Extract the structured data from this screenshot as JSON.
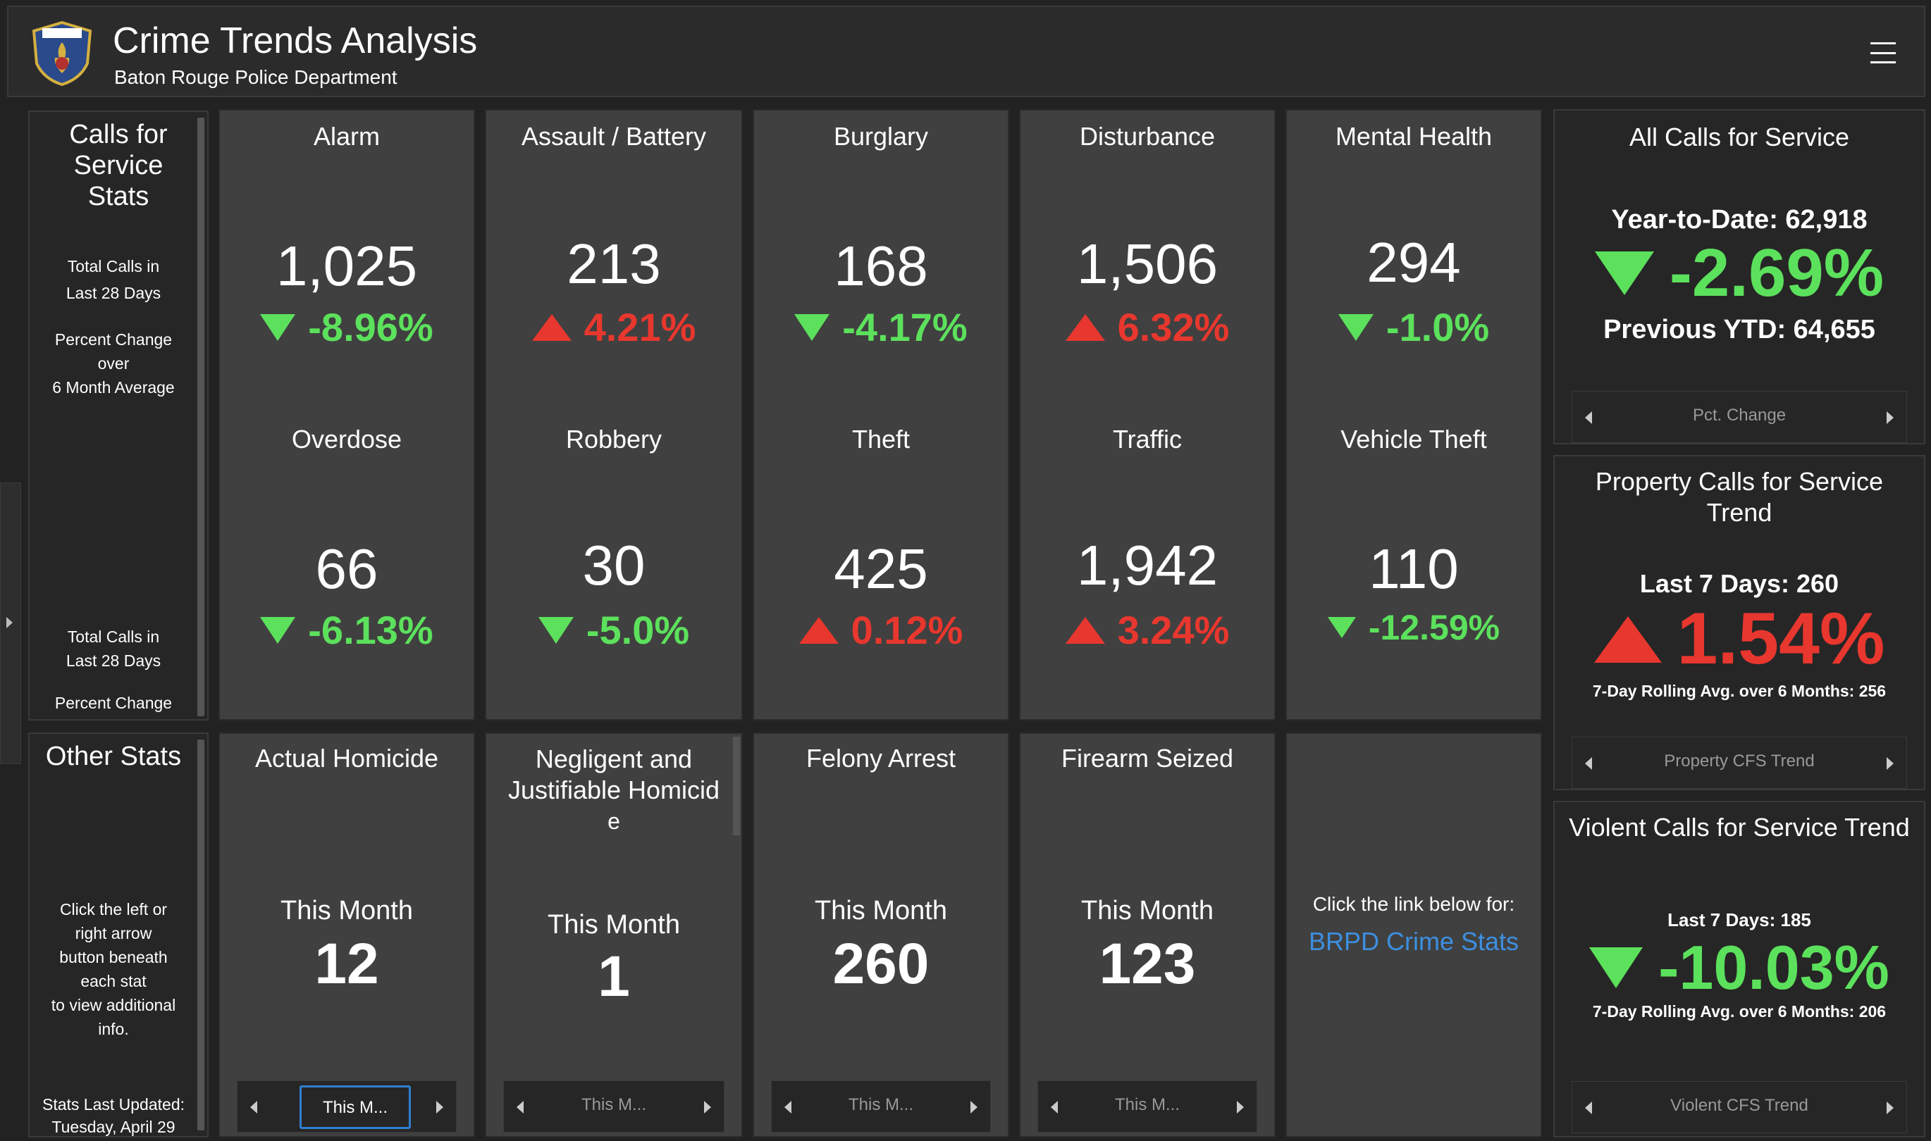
{
  "header": {
    "title": "Crime Trends Analysis",
    "subtitle": "Baton Rouge Police Department",
    "logo_text": "POLICE"
  },
  "calls_sidebar": {
    "title": "Calls for Service Stats",
    "note1_line1": "Total Calls in",
    "note1_line2": "Last 28 Days",
    "note2_line1": "Percent Change",
    "note2_line2": "over",
    "note2_line3": "6 Month Average",
    "note3_line1": "Total Calls in",
    "note3_line2": "Last 28 Days",
    "note4_line1": "Percent Change"
  },
  "other_sidebar": {
    "title": "Other Stats",
    "instr_line1": "Click the left or",
    "instr_line2": "right arrow",
    "instr_line3": "button beneath",
    "instr_line4": "each stat",
    "instr_line5": "to view additional",
    "instr_line6": "info.",
    "updated_line1": "Stats Last Updated:",
    "updated_line2": "Tuesday, April 29"
  },
  "stats_row1": [
    {
      "title": "Alarm",
      "value": "1,025",
      "change": "-8.96%",
      "direction": "down"
    },
    {
      "title": "Assault / Battery",
      "value": "213",
      "change": "4.21%",
      "direction": "up"
    },
    {
      "title": "Burglary",
      "value": "168",
      "change": "-4.17%",
      "direction": "down"
    },
    {
      "title": "Disturbance",
      "value": "1,506",
      "change": "6.32%",
      "direction": "up"
    },
    {
      "title": "Mental Health",
      "value": "294",
      "change": "-1.0%",
      "direction": "down"
    }
  ],
  "stats_row2": [
    {
      "title": "Overdose",
      "value": "66",
      "change": "-6.13%",
      "direction": "down"
    },
    {
      "title": "Robbery",
      "value": "30",
      "change": "-5.0%",
      "direction": "down"
    },
    {
      "title": "Theft",
      "value": "425",
      "change": "0.12%",
      "direction": "up"
    },
    {
      "title": "Traffic",
      "value": "1,942",
      "change": "3.24%",
      "direction": "up"
    },
    {
      "title": "Vehicle Theft",
      "value": "110",
      "change": "-12.59%",
      "direction": "down"
    }
  ],
  "other_stats": [
    {
      "title_line1": "Actual Homicide",
      "title_line2": "",
      "title_line3": "",
      "label": "This Month",
      "value": "12",
      "nav": "This M..."
    },
    {
      "title_line1": "Negligent and",
      "title_line2": "Justifiable Homicid",
      "title_line3": "e",
      "label": "This Month",
      "value": "1",
      "nav": "This M..."
    },
    {
      "title_line1": "Felony Arrest",
      "title_line2": "",
      "title_line3": "",
      "label": "This Month",
      "value": "260",
      "nav": "This M..."
    },
    {
      "title_line1": "Firearm Seized",
      "title_line2": "",
      "title_line3": "",
      "label": "This Month",
      "value": "123",
      "nav": "This M..."
    }
  ],
  "link_panel": {
    "text": "Click the link below for:",
    "link": "BRPD Crime Stats"
  },
  "kpi_all": {
    "title": "All Calls for Service",
    "ytd": "Year-to-Date: 62,918",
    "change": "-2.69%",
    "direction": "down",
    "prev": "Previous YTD: 64,655",
    "nav": "Pct. Change"
  },
  "kpi_property": {
    "title_line1": "Property Calls for Service",
    "title_line2": "Trend",
    "last7": "Last 7 Days: 260",
    "change": "1.54%",
    "direction": "up",
    "rolling": "7-Day Rolling Avg. over 6 Months: 256",
    "nav": "Property CFS Trend"
  },
  "kpi_violent": {
    "title": "Violent Calls for Service Trend",
    "last7": "Last 7 Days: 185",
    "change": "-10.03%",
    "direction": "down",
    "rolling": "7-Day Rolling Avg. over 6 Months: 206",
    "nav": "Violent CFS Trend"
  },
  "colors": {
    "positive_green": "#5ce15c",
    "negative_red": "#e8372e",
    "link_blue": "#3d8fe0",
    "panel_gray": "#404040",
    "background": "#222222"
  }
}
